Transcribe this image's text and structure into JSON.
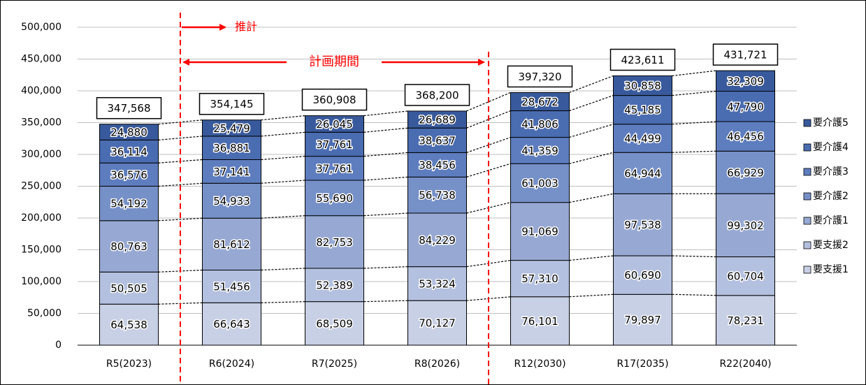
{
  "chart_data": {
    "type": "stacked-bar",
    "categories": [
      "R5(2023)",
      "R6(2024)",
      "R7(2025)",
      "R8(2026)",
      "R12(2030)",
      "R17(2035)",
      "R22(2040)"
    ],
    "series": [
      {
        "name": "要支援1",
        "color": "#c8d0e6",
        "values": [
          64538,
          66643,
          68509,
          70127,
          76101,
          79897,
          78231
        ],
        "value_labels": [
          "64,538",
          "66,643",
          "68,509",
          "70,127",
          "76,101",
          "79,897",
          "78,231"
        ]
      },
      {
        "name": "要支援2",
        "color": "#b3c0df",
        "values": [
          50505,
          51456,
          52389,
          53324,
          57310,
          60690,
          60704
        ],
        "value_labels": [
          "50,505",
          "51,456",
          "52,389",
          "53,324",
          "57,310",
          "60,690",
          "60,704"
        ]
      },
      {
        "name": "要介護1",
        "color": "#97a9d3",
        "values": [
          80763,
          81612,
          82753,
          84229,
          91069,
          97538,
          99302
        ],
        "value_labels": [
          "80,763",
          "81,612",
          "82,753",
          "84,229",
          "91,069",
          "97,538",
          "99,302"
        ]
      },
      {
        "name": "要介護2",
        "color": "#7690c8",
        "values": [
          54192,
          54933,
          55690,
          56738,
          61003,
          64944,
          66929
        ],
        "value_labels": [
          "54,192",
          "54,933",
          "55,690",
          "56,738",
          "61,003",
          "64,944",
          "66,929"
        ]
      },
      {
        "name": "要介護3",
        "color": "#5d7dbf",
        "values": [
          36576,
          37141,
          37761,
          38456,
          41359,
          44499,
          46456
        ],
        "value_labels": [
          "36,576",
          "37,141",
          "37,761",
          "38,456",
          "41,359",
          "44,499",
          "46,456"
        ]
      },
      {
        "name": "要介護4",
        "color": "#4a6cb1",
        "values": [
          36114,
          36881,
          37761,
          38637,
          41806,
          45185,
          47790
        ],
        "value_labels": [
          "36,114",
          "36,881",
          "37,761",
          "38,637",
          "41,806",
          "45,185",
          "47,790"
        ]
      },
      {
        "name": "要介護5",
        "color": "#385a9c",
        "values": [
          24880,
          25479,
          26045,
          26689,
          28672,
          30858,
          32309
        ],
        "value_labels": [
          "24,880",
          "25,479",
          "26,045",
          "26,689",
          "28,672",
          "30,858",
          "32,309"
        ]
      }
    ],
    "totals": [
      347568,
      354145,
      360908,
      368200,
      397320,
      423611,
      431721
    ],
    "total_labels": [
      "347,568",
      "354,145",
      "360,908",
      "368,200",
      "397,320",
      "423,611",
      "431,721"
    ],
    "ylim": [
      0,
      500000
    ],
    "yticks": [
      0,
      {
        "value": 50000,
        "label": "50,000"
      },
      {
        "value": 100000,
        "label": "100,000"
      },
      {
        "value": 150000,
        "label": "150,000"
      },
      {
        "value": 200000,
        "label": "200,000"
      },
      {
        "value": 250000,
        "label": "250,000"
      },
      {
        "value": 300000,
        "label": "300,000"
      },
      {
        "value": 350000,
        "label": "350,000"
      },
      {
        "value": 400000,
        "label": "400,000"
      },
      {
        "value": 450000,
        "label": "450,000"
      },
      {
        "value": 500000,
        "label": "500,000"
      }
    ],
    "grid": true,
    "legend": "right",
    "annotations": [
      "推計",
      "計画期間"
    ]
  }
}
